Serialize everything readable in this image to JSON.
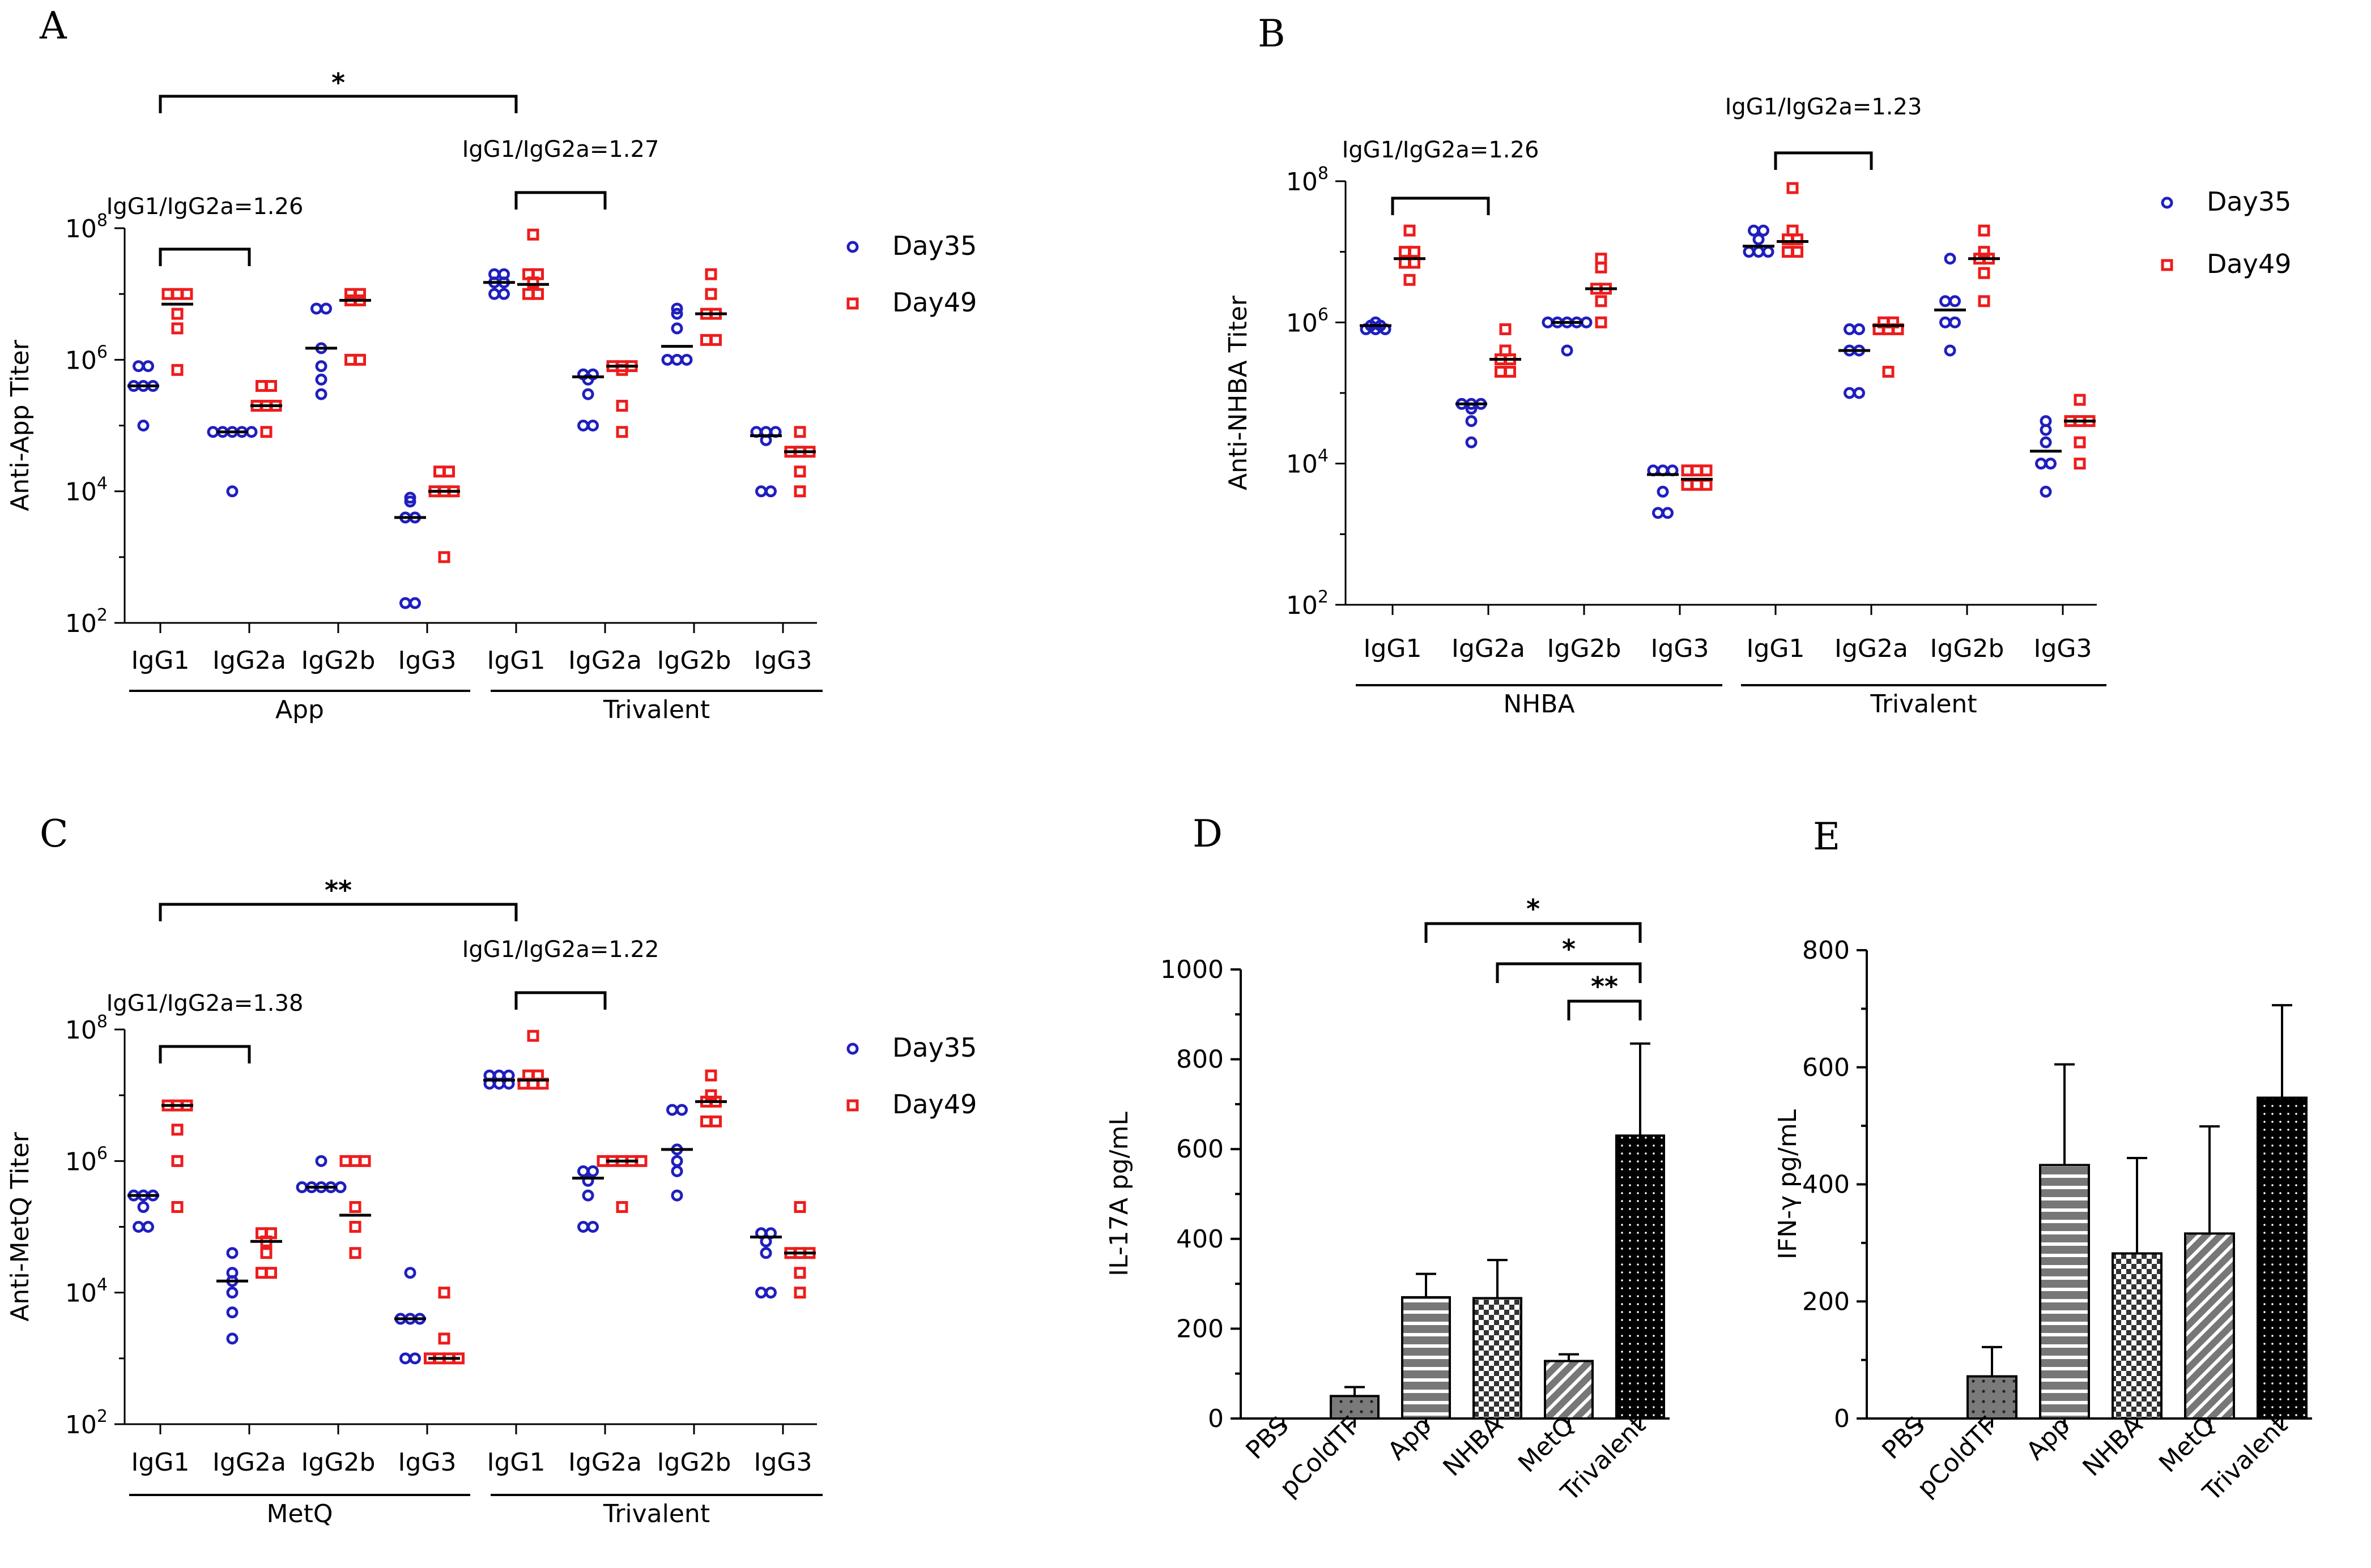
{
  "panels": [
    {
      "letter": "A"
    },
    {
      "letter": "B"
    },
    {
      "letter": "C"
    },
    {
      "letter": "D"
    },
    {
      "letter": "E"
    }
  ],
  "colors": {
    "day35": "#1f1fbf",
    "day49": "#ee1c1c",
    "axis": "#000000"
  },
  "chart_data": [
    {
      "panel": "A",
      "type": "scatter",
      "ylabel": "Anti-App Titer",
      "yscale": "log10",
      "ylim": [
        100,
        100000000
      ],
      "yticks": [
        {
          "exp": "2",
          "value": 100
        },
        {
          "exp": "4",
          "value": 10000
        },
        {
          "exp": "6",
          "value": 1000000
        },
        {
          "exp": "8",
          "value": 100000000
        }
      ],
      "categories": [
        "IgG1",
        "IgG2a",
        "IgG2b",
        "IgG3",
        "IgG1",
        "IgG2a",
        "IgG2b",
        "IgG3"
      ],
      "groups": [
        {
          "label": "App",
          "range": [
            0,
            3
          ]
        },
        {
          "label": "Trivalent",
          "range": [
            4,
            7
          ]
        }
      ],
      "legend": [
        {
          "name": "Day35",
          "marker": "circle"
        },
        {
          "name": "Day49",
          "marker": "square"
        }
      ],
      "series": [
        {
          "name": "Day35",
          "points": [
            [
              100000,
              400000,
              400000,
              400000,
              800000,
              800000
            ],
            [
              80000,
              80000,
              80000,
              80000,
              80000,
              10000
            ],
            [
              300000,
              500000,
              800000,
              1500000,
              6000000,
              6000000
            ],
            [
              200,
              200,
              4000,
              4000,
              7000,
              8000
            ],
            [
              10000000,
              10000000,
              15000000,
              15000000,
              20000000,
              20000000
            ],
            [
              100000,
              100000,
              300000,
              500000,
              600000,
              600000
            ],
            [
              1000000,
              1000000,
              1000000,
              3000000,
              5000000,
              6000000
            ],
            [
              10000,
              10000,
              60000,
              80000,
              80000,
              80000
            ]
          ],
          "means": [
            400000,
            80000,
            1500000,
            4000,
            15000000,
            550000,
            1600000,
            70000
          ]
        },
        {
          "name": "Day49",
          "points": [
            [
              700000,
              3000000,
              5000000,
              10000000,
              10000000,
              10000000
            ],
            [
              80000,
              200000,
              200000,
              200000,
              400000,
              400000
            ],
            [
              1000000,
              1000000,
              8000000,
              8000000,
              10000000,
              10000000
            ],
            [
              1000,
              10000,
              10000,
              10000,
              20000,
              20000
            ],
            [
              10000000,
              10000000,
              15000000,
              20000000,
              20000000,
              80000000
            ],
            [
              80000,
              200000,
              700000,
              800000,
              800000,
              800000
            ],
            [
              2000000,
              2000000,
              5000000,
              5000000,
              10000000,
              20000000
            ],
            [
              10000,
              20000,
              40000,
              40000,
              40000,
              80000
            ]
          ],
          "means": [
            7000000,
            200000,
            8000000,
            10000,
            14000000,
            800000,
            5000000,
            40000
          ]
        }
      ],
      "brackets": [
        {
          "from": 0,
          "to": 4,
          "label": "*"
        },
        {
          "from": 0,
          "to": 1,
          "label": "IgG1/IgG2a=1.26"
        },
        {
          "from": 4,
          "to": 5,
          "label": "IgG1/IgG2a=1.27"
        }
      ]
    },
    {
      "panel": "B",
      "type": "scatter",
      "ylabel": "Anti-NHBA Titer",
      "yscale": "log10",
      "ylim": [
        100,
        100000000
      ],
      "yticks": [
        {
          "exp": "2",
          "value": 100
        },
        {
          "exp": "4",
          "value": 10000
        },
        {
          "exp": "6",
          "value": 1000000
        },
        {
          "exp": "8",
          "value": 100000000
        }
      ],
      "categories": [
        "IgG1",
        "IgG2a",
        "IgG2b",
        "IgG3",
        "IgG1",
        "IgG2a",
        "IgG2b",
        "IgG3"
      ],
      "groups": [
        {
          "label": "NHBA",
          "range": [
            0,
            3
          ]
        },
        {
          "label": "Trivalent",
          "range": [
            4,
            7
          ]
        }
      ],
      "legend": [
        {
          "name": "Day35",
          "marker": "circle"
        },
        {
          "name": "Day49",
          "marker": "square"
        }
      ],
      "series": [
        {
          "name": "Day35",
          "points": [
            [
              800000,
              800000,
              800000,
              900000,
              900000,
              1000000
            ],
            [
              20000,
              40000,
              60000,
              70000,
              70000,
              70000
            ],
            [
              400000,
              1000000,
              1000000,
              1000000,
              1000000,
              1000000
            ],
            [
              2000,
              2000,
              4000,
              8000,
              8000,
              8000
            ],
            [
              10000000,
              10000000,
              10000000,
              15000000,
              20000000,
              20000000
            ],
            [
              100000,
              100000,
              400000,
              400000,
              800000,
              800000
            ],
            [
              400000,
              1000000,
              1000000,
              2000000,
              2000000,
              8000000
            ],
            [
              4000,
              10000,
              10000,
              20000,
              30000,
              40000
            ]
          ],
          "means": [
            900000,
            70000,
            1000000,
            7000,
            12000000,
            400000,
            1500000,
            15000
          ]
        },
        {
          "name": "Day49",
          "points": [
            [
              4000000,
              7000000,
              7000000,
              10000000,
              10000000,
              20000000
            ],
            [
              200000,
              200000,
              300000,
              300000,
              400000,
              800000
            ],
            [
              1000000,
              2000000,
              3000000,
              3000000,
              6000000,
              8000000
            ],
            [
              5000,
              5000,
              5000,
              8000,
              8000,
              8000
            ],
            [
              10000000,
              10000000,
              15000000,
              15000000,
              20000000,
              80000000
            ],
            [
              200000,
              800000,
              800000,
              800000,
              1000000,
              1000000
            ],
            [
              2000000,
              5000000,
              8000000,
              8000000,
              10000000,
              20000000
            ],
            [
              10000,
              20000,
              40000,
              40000,
              40000,
              80000
            ]
          ],
          "means": [
            8000000,
            300000,
            3000000,
            6000,
            14000000,
            900000,
            8000000,
            40000
          ]
        }
      ],
      "brackets": [
        {
          "from": 0,
          "to": 1,
          "label": "IgG1/IgG2a=1.26"
        },
        {
          "from": 4,
          "to": 5,
          "label": "IgG1/IgG2a=1.23"
        }
      ]
    },
    {
      "panel": "C",
      "type": "scatter",
      "ylabel": "Anti-MetQ Titer",
      "yscale": "log10",
      "ylim": [
        100,
        100000000
      ],
      "yticks": [
        {
          "exp": "2",
          "value": 100
        },
        {
          "exp": "4",
          "value": 10000
        },
        {
          "exp": "6",
          "value": 1000000
        },
        {
          "exp": "8",
          "value": 100000000
        }
      ],
      "categories": [
        "IgG1",
        "IgG2a",
        "IgG2b",
        "IgG3",
        "IgG1",
        "IgG2a",
        "IgG2b",
        "IgG3"
      ],
      "groups": [
        {
          "label": "MetQ",
          "range": [
            0,
            3
          ]
        },
        {
          "label": "Trivalent",
          "range": [
            4,
            7
          ]
        }
      ],
      "legend": [
        {
          "name": "Day35",
          "marker": "circle"
        },
        {
          "name": "Day49",
          "marker": "square"
        }
      ],
      "series": [
        {
          "name": "Day35",
          "points": [
            [
              100000,
              100000,
              200000,
              300000,
              300000,
              300000
            ],
            [
              2000,
              5000,
              10000,
              15000,
              20000,
              40000
            ],
            [
              400000,
              400000,
              400000,
              400000,
              400000,
              1000000
            ],
            [
              1000,
              1000,
              4000,
              4000,
              4000,
              20000
            ],
            [
              15000000,
              15000000,
              15000000,
              20000000,
              20000000,
              20000000
            ],
            [
              100000,
              100000,
              300000,
              500000,
              700000,
              700000
            ],
            [
              300000,
              700000,
              1000000,
              1500000,
              6000000,
              6000000
            ],
            [
              10000,
              10000,
              40000,
              60000,
              80000,
              80000
            ]
          ],
          "means": [
            300000,
            15000,
            400000,
            4000,
            17000000,
            550000,
            1500000,
            70000
          ]
        },
        {
          "name": "Day49",
          "points": [
            [
              200000,
              1000000,
              3000000,
              7000000,
              7000000,
              7000000
            ],
            [
              20000,
              20000,
              40000,
              60000,
              80000,
              80000
            ],
            [
              40000,
              100000,
              200000,
              1000000,
              1000000,
              1000000
            ],
            [
              1000,
              1000,
              1000,
              1000,
              2000,
              10000
            ],
            [
              15000000,
              15000000,
              15000000,
              20000000,
              20000000,
              80000000
            ],
            [
              200000,
              1000000,
              1000000,
              1000000,
              1000000,
              1000000
            ],
            [
              4000000,
              4000000,
              8000000,
              8000000,
              10000000,
              20000000
            ],
            [
              10000,
              20000,
              40000,
              40000,
              40000,
              200000
            ]
          ],
          "means": [
            7000000,
            60000,
            150000,
            1000,
            17000000,
            1000000,
            8000000,
            40000
          ]
        }
      ],
      "brackets": [
        {
          "from": 0,
          "to": 4,
          "label": "**"
        },
        {
          "from": 0,
          "to": 1,
          "label": "IgG1/IgG2a=1.38"
        },
        {
          "from": 4,
          "to": 5,
          "label": "IgG1/IgG2a=1.22"
        }
      ]
    },
    {
      "panel": "D",
      "type": "bar",
      "ylabel": "IL-17A pg/mL",
      "ylim": [
        0,
        1000
      ],
      "yticks": [
        0,
        200,
        400,
        600,
        800,
        1000
      ],
      "categories": [
        "PBS",
        "pColdTF",
        "App",
        "NHBA",
        "MetQ",
        "Trivalent"
      ],
      "patterns": [
        "none",
        "dots",
        "hstripes",
        "checker",
        "diag",
        "densedots"
      ],
      "values": [
        0,
        50,
        270,
        268,
        128,
        630
      ],
      "errors": [
        0,
        20,
        52,
        85,
        15,
        205
      ],
      "significance": [
        {
          "from": 2,
          "to": 5,
          "label": "*"
        },
        {
          "from": 3,
          "to": 5,
          "label": "*"
        },
        {
          "from": 4,
          "to": 5,
          "label": "**"
        }
      ]
    },
    {
      "panel": "E",
      "type": "bar",
      "ylabel": "IFN-γ pg/mL",
      "ylim": [
        0,
        800
      ],
      "yticks": [
        0,
        200,
        400,
        600,
        800
      ],
      "categories": [
        "PBS",
        "pColdTF",
        "App",
        "NHBA",
        "MetQ",
        "Trivalent"
      ],
      "patterns": [
        "none",
        "dots",
        "hstripes",
        "checker",
        "diag",
        "densedots"
      ],
      "values": [
        0,
        72,
        433,
        282,
        316,
        548
      ],
      "errors": [
        0,
        50,
        172,
        163,
        183,
        158
      ],
      "significance": []
    }
  ]
}
